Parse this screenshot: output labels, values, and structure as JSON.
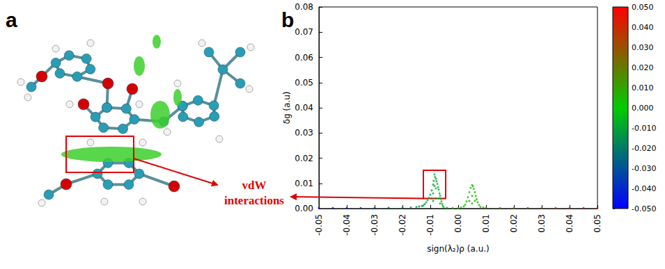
{
  "panel_labels": [
    "a",
    "b"
  ],
  "chart_data": {
    "type": "scatter",
    "x_label": "sign(λ₂)ρ (a.u.)",
    "y_label": "δg (a.u)",
    "x": [
      -0.05,
      -0.045,
      -0.04,
      -0.035,
      -0.03,
      -0.025,
      -0.02,
      -0.017,
      -0.015,
      -0.014,
      -0.013,
      -0.0125,
      -0.012,
      -0.0115,
      -0.011,
      -0.0105,
      -0.01,
      -0.0095,
      -0.009,
      -0.0088,
      -0.0085,
      -0.0083,
      -0.008,
      -0.0078,
      -0.0075,
      -0.0072,
      -0.007,
      -0.0067,
      -0.0065,
      -0.0062,
      -0.006,
      -0.0057,
      -0.0055,
      -0.0052,
      -0.0095,
      -0.009,
      -0.009,
      -0.0085,
      -0.008,
      -0.008,
      -0.007,
      -0.0065,
      -0.004,
      -0.002,
      0,
      0.001,
      0.002,
      0.0025,
      0.003,
      0.0035,
      0.004,
      0.0045,
      0.005,
      0.0053,
      0.0056,
      0.006,
      0.0063,
      0.0066,
      0.007,
      0.0075,
      0.008,
      0.004,
      0.005,
      0.005,
      0.006,
      0.009,
      0.01,
      0.015,
      0.02,
      0.025,
      0.03,
      0.035,
      0.04,
      0.045,
      0.05
    ],
    "values": [
      0.0002,
      0.0002,
      0.0002,
      0.0002,
      0.0002,
      0.0003,
      0.0003,
      0.0004,
      0.0006,
      0.0008,
      0.001,
      0.0012,
      0.0018,
      0.0025,
      0.0033,
      0.0042,
      0.0055,
      0.0072,
      0.0095,
      0.011,
      0.0135,
      0.0125,
      0.0118,
      0.0108,
      0.0098,
      0.0085,
      0.0075,
      0.006,
      0.005,
      0.0038,
      0.0028,
      0.0018,
      0.001,
      0.0004,
      0.004,
      0.006,
      0.003,
      0.009,
      0.008,
      0.004,
      0.004,
      0.002,
      0.0003,
      0.0002,
      0.0002,
      0.0004,
      0.0008,
      0.0015,
      0.0028,
      0.0045,
      0.0065,
      0.0082,
      0.0093,
      0.0088,
      0.0078,
      0.0065,
      0.005,
      0.0037,
      0.0025,
      0.0014,
      0.0006,
      0.003,
      0.005,
      0.002,
      0.003,
      0.0004,
      0.0003,
      0.0002,
      0.0002,
      0.0002,
      0.0002,
      0.0002,
      0.0002,
      0.0002,
      0.0002
    ],
    "xlim": [
      -0.05,
      0.05
    ],
    "xticks": [
      -0.05,
      -0.04,
      -0.03,
      -0.02,
      -0.01,
      {
        "value": 0,
        "label": "0.00"
      },
      0.01,
      0.02,
      0.03,
      0.04,
      0.05
    ],
    "ylim": [
      0,
      0.08
    ],
    "yticks": [
      {
        "value": 0,
        "label": "0.00"
      },
      0.01,
      0.02,
      0.03,
      0.04,
      0.05,
      0.06,
      0.07,
      0.08
    ],
    "grid": false,
    "colorbar_lim": [
      -0.05,
      0.05
    ],
    "colorbar_ticks": [
      {
        "value": -0.05,
        "label": "-0.050"
      },
      {
        "value": -0.04,
        "label": "-0.040"
      },
      {
        "value": -0.03,
        "label": "-0.030"
      },
      {
        "value": -0.02,
        "label": "-0.020"
      },
      {
        "value": -0.01,
        "label": "-0.010"
      },
      {
        "value": 0,
        "label": "0.000"
      },
      {
        "value": 0.01,
        "label": "0.010"
      },
      {
        "value": 0.02,
        "label": "0.020"
      },
      {
        "value": 0.03,
        "label": "0.030"
      },
      {
        "value": 0.04,
        "label": "0.040"
      },
      {
        "value": 0.05,
        "label": "0.050"
      }
    ],
    "annotations": [
      {
        "text": "vdW interactions",
        "xlim": [
          -0.0125,
          -0.0045
        ],
        "ylim": [
          0.004,
          0.0152
        ]
      }
    ]
  }
}
